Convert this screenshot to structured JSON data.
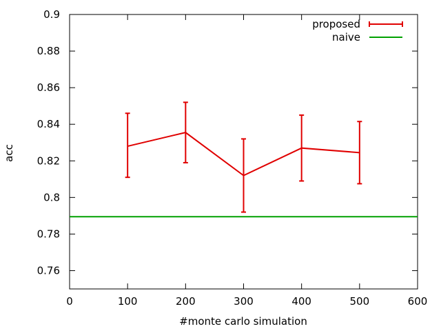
{
  "chart_data": {
    "type": "line",
    "title": "",
    "xlabel": "#monte carlo simulation",
    "ylabel": "acc",
    "xlim": [
      0,
      600
    ],
    "ylim": [
      0.75,
      0.9
    ],
    "x_ticks": [
      0,
      100,
      200,
      300,
      400,
      500,
      600
    ],
    "y_ticks": [
      0.76,
      0.78,
      0.8,
      0.82,
      0.84,
      0.86,
      0.88,
      0.9
    ],
    "x_tick_labels": [
      "0",
      "100",
      "200",
      "300",
      "400",
      "500",
      "600"
    ],
    "y_tick_labels": [
      "0.76",
      "0.78",
      "0.8",
      "0.82",
      "0.84",
      "0.86",
      "0.88",
      "0.9"
    ],
    "grid": false,
    "legend_position": "top-right",
    "series": [
      {
        "name": "proposed",
        "color": "#e00000",
        "style": "line-with-errorbars",
        "x": [
          100,
          200,
          300,
          400,
          500
        ],
        "y": [
          0.828,
          0.8355,
          0.812,
          0.827,
          0.8245
        ],
        "y_low": [
          0.811,
          0.819,
          0.792,
          0.809,
          0.8075
        ],
        "y_high": [
          0.846,
          0.852,
          0.832,
          0.845,
          0.8415
        ]
      },
      {
        "name": "naive",
        "color": "#00a000",
        "style": "horizontal-line",
        "y": 0.7895
      }
    ]
  }
}
